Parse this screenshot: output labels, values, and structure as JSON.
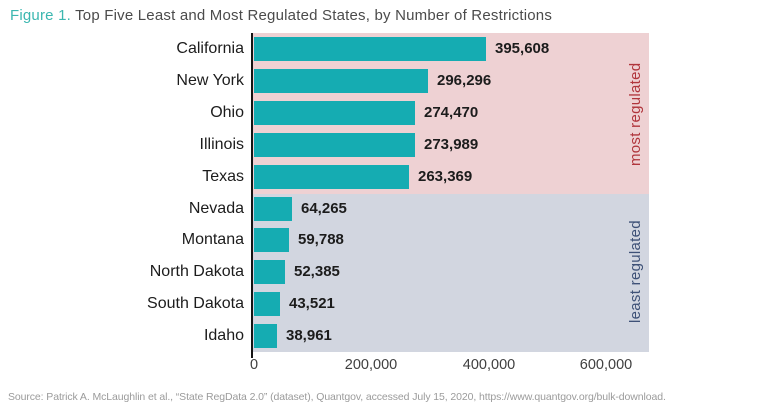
{
  "title": {
    "figure_label": "Figure 1.",
    "text": " Top Five Least and Most Regulated States, by Number of Restrictions"
  },
  "chart_data": {
    "type": "bar",
    "orientation": "horizontal",
    "title": "Top Five Least and Most Regulated States, by Number of Restrictions",
    "xlabel": "",
    "ylabel": "",
    "categories": [
      "California",
      "New York",
      "Ohio",
      "Illinois",
      "Texas",
      "Nevada",
      "Montana",
      "North Dakota",
      "South Dakota",
      "Idaho"
    ],
    "values": [
      395608,
      296296,
      274470,
      273989,
      263369,
      64265,
      59788,
      52385,
      43521,
      38961
    ],
    "value_labels": [
      "395,608",
      "296,296",
      "274,470",
      "273,989",
      "263,369",
      "64,265",
      "59,788",
      "52,385",
      "43,521",
      "38,961"
    ],
    "groups": [
      {
        "label": "most regulated",
        "band_color": "#eed1d3",
        "text_color": "#b0353c",
        "count": 5
      },
      {
        "label": "least regulated",
        "band_color": "#d2d6e0",
        "text_color": "#3e5177",
        "count": 5
      }
    ],
    "bar_color": "#15acb2",
    "xlim": [
      0,
      676000
    ],
    "x_ticks": [
      {
        "value": 0,
        "label": "0"
      },
      {
        "value": 200000,
        "label": "200,000"
      },
      {
        "value": 400000,
        "label": "400,000"
      },
      {
        "value": 600000,
        "label": "600,000"
      }
    ],
    "grid": false,
    "legend": false
  },
  "source": "Source: Patrick A. McLaughlin et al., “State RegData 2.0” (dataset), Quantgov, accessed July 15, 2020, https://www.quantgov.org/bulk-download."
}
